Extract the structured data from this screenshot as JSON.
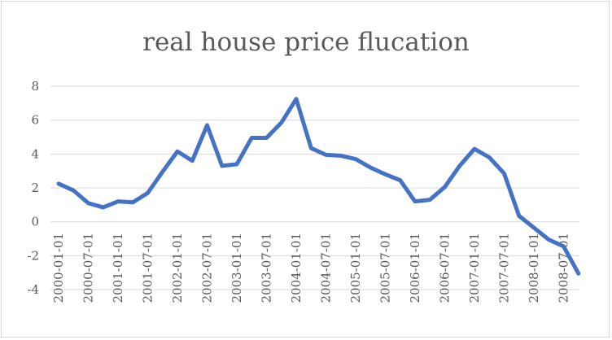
{
  "chart_data": {
    "type": "line",
    "title": "real house price flucation",
    "xlabel": "",
    "ylabel": "",
    "ylim": [
      -4,
      8
    ],
    "yticks": [
      8,
      6,
      4,
      2,
      0,
      -2,
      -4
    ],
    "grid": true,
    "legend": "none",
    "line_color": "#4472c4",
    "x_tick_labels": [
      "2000-01-01",
      "2000-07-01",
      "2001-01-01",
      "2001-07-01",
      "2002-01-01",
      "2002-07-01",
      "2003-01-01",
      "2003-07-01",
      "2004-01-01",
      "2004-07-01",
      "2005-01-01",
      "2005-07-01",
      "2006-01-01",
      "2006-07-01",
      "2007-01-01",
      "2007-07-01",
      "2008-01-01",
      "2008-07-01"
    ],
    "x": [
      "2000-01-01",
      "2000-04-01",
      "2000-07-01",
      "2000-10-01",
      "2001-01-01",
      "2001-04-01",
      "2001-07-01",
      "2001-10-01",
      "2002-01-01",
      "2002-04-01",
      "2002-07-01",
      "2002-10-01",
      "2003-01-01",
      "2003-04-01",
      "2003-07-01",
      "2003-10-01",
      "2004-01-01",
      "2004-04-01",
      "2004-07-01",
      "2004-10-01",
      "2005-01-01",
      "2005-04-01",
      "2005-07-01",
      "2005-10-01",
      "2006-01-01",
      "2006-04-01",
      "2006-07-01",
      "2006-10-01",
      "2007-01-01",
      "2007-04-01",
      "2007-07-01",
      "2007-10-01",
      "2008-01-01",
      "2008-04-01",
      "2008-07-01",
      "2008-10-01"
    ],
    "series": [
      {
        "values": [
          2.25,
          1.85,
          1.1,
          0.85,
          1.2,
          1.15,
          1.7,
          2.95,
          4.15,
          3.6,
          5.7,
          3.3,
          3.4,
          4.95,
          4.95,
          5.85,
          7.25,
          4.35,
          3.95,
          3.9,
          3.7,
          3.2,
          2.8,
          2.45,
          1.2,
          1.3,
          2.05,
          3.3,
          4.3,
          3.8,
          2.85,
          0.35,
          -0.35,
          -1.05,
          -1.45,
          -3.05
        ]
      }
    ]
  }
}
